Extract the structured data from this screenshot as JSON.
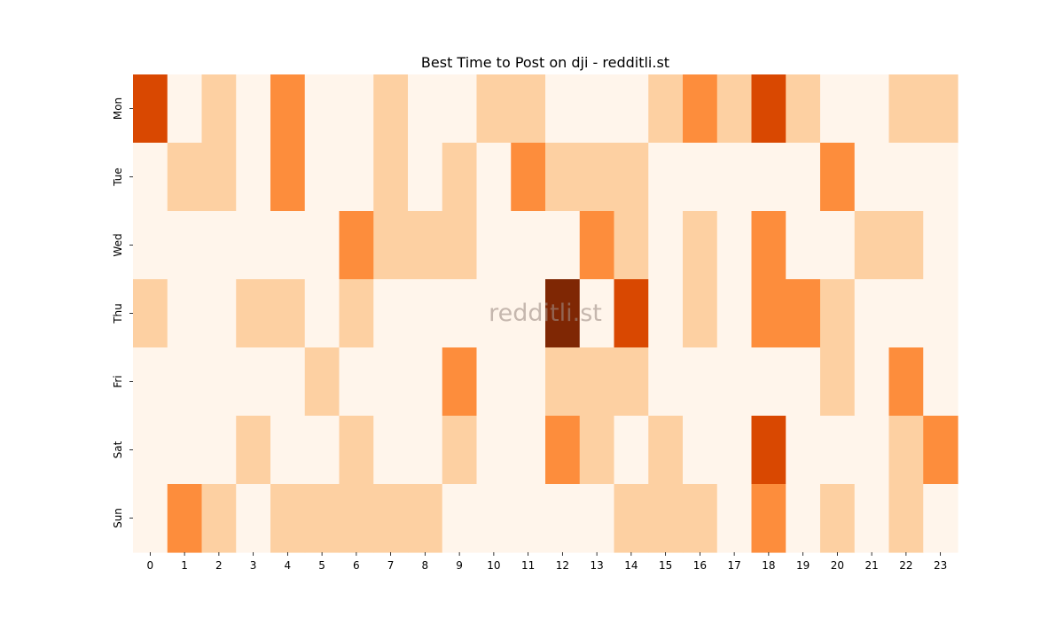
{
  "chart_data": {
    "type": "heatmap",
    "title": "Best Time to Post on dji - redditli.st",
    "watermark": "redditli.st",
    "xlabel": "",
    "ylabel": "",
    "x": [
      "0",
      "1",
      "2",
      "3",
      "4",
      "5",
      "6",
      "7",
      "8",
      "9",
      "10",
      "11",
      "12",
      "13",
      "14",
      "15",
      "16",
      "17",
      "18",
      "19",
      "20",
      "21",
      "22",
      "23"
    ],
    "y": [
      "Mon",
      "Tue",
      "Wed",
      "Thu",
      "Fri",
      "Sat",
      "Sun"
    ],
    "values": [
      [
        3,
        0,
        1,
        0,
        2,
        0,
        0,
        1,
        0,
        0,
        1,
        1,
        0,
        0,
        0,
        1,
        2,
        1,
        3,
        1,
        0,
        0,
        1,
        1
      ],
      [
        0,
        1,
        1,
        0,
        2,
        0,
        0,
        1,
        0,
        1,
        0,
        2,
        1,
        1,
        1,
        0,
        0,
        0,
        0,
        0,
        2,
        0,
        0,
        0
      ],
      [
        0,
        0,
        0,
        0,
        0,
        0,
        2,
        1,
        1,
        1,
        0,
        0,
        0,
        2,
        1,
        0,
        1,
        0,
        2,
        0,
        0,
        1,
        1,
        0
      ],
      [
        1,
        0,
        0,
        1,
        1,
        0,
        1,
        0,
        0,
        0,
        0,
        0,
        4,
        0,
        3,
        0,
        1,
        0,
        2,
        2,
        1,
        0,
        0,
        0
      ],
      [
        0,
        0,
        0,
        0,
        0,
        1,
        0,
        0,
        0,
        2,
        0,
        0,
        1,
        1,
        1,
        0,
        0,
        0,
        0,
        0,
        1,
        0,
        2,
        0
      ],
      [
        0,
        0,
        0,
        1,
        0,
        0,
        1,
        0,
        0,
        1,
        0,
        0,
        2,
        1,
        0,
        1,
        0,
        0,
        3,
        0,
        0,
        0,
        1,
        2
      ],
      [
        0,
        2,
        1,
        0,
        1,
        1,
        1,
        1,
        1,
        0,
        0,
        0,
        0,
        0,
        1,
        1,
        1,
        0,
        2,
        0,
        1,
        0,
        1,
        0
      ]
    ],
    "value_range": [
      0,
      4
    ],
    "colormap": [
      "#fff5eb",
      "#fdd0a2",
      "#fd8d3c",
      "#d94801",
      "#7f2704"
    ],
    "colorbar": false,
    "grid": false
  }
}
